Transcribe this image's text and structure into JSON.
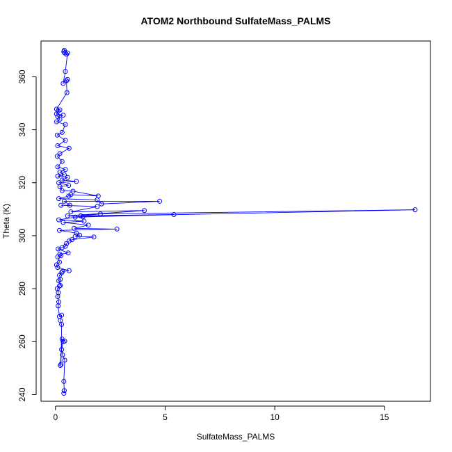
{
  "chart_data": {
    "type": "line",
    "title": "ATOM2 Northbound SulfateMass_PALMS",
    "xlabel": "SulfateMass_PALMS",
    "ylabel": "Theta (K)",
    "xlim": [
      -0.66,
      17.1
    ],
    "ylim": [
      237.5,
      373.5
    ],
    "xticks": [
      0,
      5,
      10,
      15
    ],
    "yticks": [
      240,
      260,
      280,
      300,
      320,
      340,
      360
    ],
    "grid": false,
    "markers": "open-circle",
    "color": "#0000ff",
    "series": [
      {
        "points": [
          [
            0.38,
            240.5
          ],
          [
            0.4,
            241.5
          ],
          [
            0.38,
            245.0
          ],
          [
            0.42,
            253.0
          ],
          [
            0.32,
            255.0
          ],
          [
            0.28,
            257.0
          ],
          [
            0.35,
            260.0
          ],
          [
            0.42,
            260.2
          ],
          [
            0.3,
            261.0
          ],
          [
            0.22,
            251.0
          ],
          [
            0.25,
            251.5
          ],
          [
            0.28,
            266.5
          ],
          [
            0.22,
            268.0
          ],
          [
            0.28,
            270.0
          ],
          [
            0.18,
            269.5
          ],
          [
            0.12,
            273.5
          ],
          [
            0.15,
            275.0
          ],
          [
            0.1,
            277.0
          ],
          [
            0.13,
            278.5
          ],
          [
            0.08,
            280.0
          ],
          [
            0.18,
            281.0
          ],
          [
            0.22,
            281.2
          ],
          [
            0.15,
            283.0
          ],
          [
            0.22,
            283.5
          ],
          [
            0.18,
            285.0
          ],
          [
            0.28,
            286.0
          ],
          [
            0.32,
            286.5
          ],
          [
            0.62,
            286.8
          ],
          [
            0.1,
            288.0
          ],
          [
            0.05,
            289.0
          ],
          [
            0.18,
            290.0
          ],
          [
            0.1,
            292.0
          ],
          [
            0.25,
            292.5
          ],
          [
            0.2,
            293.0
          ],
          [
            0.58,
            293.5
          ],
          [
            0.12,
            295.0
          ],
          [
            0.3,
            295.5
          ],
          [
            0.45,
            296.0
          ],
          [
            0.5,
            297.0
          ],
          [
            0.62,
            298.0
          ],
          [
            0.75,
            298.5
          ],
          [
            1.75,
            299.5
          ],
          [
            0.9,
            299.7
          ],
          [
            1.1,
            300.2
          ],
          [
            0.95,
            301.0
          ],
          [
            0.18,
            302.0
          ],
          [
            2.8,
            302.5
          ],
          [
            0.85,
            302.8
          ],
          [
            1.5,
            304.0
          ],
          [
            0.35,
            305.0
          ],
          [
            1.3,
            305.5
          ],
          [
            0.15,
            306.0
          ],
          [
            0.9,
            307.0
          ],
          [
            5.4,
            308.0
          ],
          [
            1.15,
            307.5
          ],
          [
            2.05,
            308.2
          ],
          [
            16.4,
            309.8
          ],
          [
            1.25,
            307.2
          ],
          [
            0.55,
            307.5
          ],
          [
            4.05,
            309.5
          ],
          [
            0.7,
            309.0
          ],
          [
            1.9,
            311.0
          ],
          [
            0.25,
            311.5
          ],
          [
            0.65,
            311.5
          ],
          [
            0.4,
            313.0
          ],
          [
            4.75,
            313.0
          ],
          [
            2.1,
            312.0
          ],
          [
            1.9,
            313.5
          ],
          [
            0.15,
            314.0
          ],
          [
            0.6,
            315.0
          ],
          [
            0.7,
            315.5
          ],
          [
            1.95,
            315.0
          ],
          [
            0.8,
            316.8
          ],
          [
            0.3,
            317.0
          ],
          [
            0.2,
            318.5
          ],
          [
            0.6,
            319.0
          ],
          [
            0.15,
            320.0
          ],
          [
            0.95,
            320.5
          ],
          [
            0.3,
            321.0
          ],
          [
            0.55,
            322.0
          ],
          [
            0.1,
            322.5
          ],
          [
            0.4,
            323.0
          ],
          [
            0.2,
            324.0
          ],
          [
            0.45,
            325.0
          ],
          [
            0.1,
            326.0
          ],
          [
            0.3,
            328.0
          ],
          [
            0.08,
            330.0
          ],
          [
            0.2,
            331.0
          ],
          [
            0.62,
            333.0
          ],
          [
            0.1,
            334.0
          ],
          [
            0.45,
            336.0
          ],
          [
            0.08,
            338.0
          ],
          [
            0.3,
            339.0
          ],
          [
            0.45,
            342.0
          ],
          [
            0.05,
            343.0
          ],
          [
            0.2,
            344.0
          ],
          [
            0.1,
            345.0
          ],
          [
            0.35,
            345.5
          ],
          [
            0.05,
            346.0
          ],
          [
            0.12,
            347.0
          ],
          [
            0.2,
            347.5
          ],
          [
            0.05,
            347.8
          ],
          [
            0.52,
            354.0
          ],
          [
            0.5,
            358.5
          ],
          [
            0.55,
            359.0
          ],
          [
            0.35,
            357.5
          ],
          [
            0.45,
            362.0
          ],
          [
            0.55,
            369.0
          ],
          [
            0.4,
            370.0
          ],
          [
            0.38,
            369.5
          ],
          [
            0.5,
            368.5
          ],
          [
            0.42,
            369.0
          ]
        ]
      }
    ]
  }
}
